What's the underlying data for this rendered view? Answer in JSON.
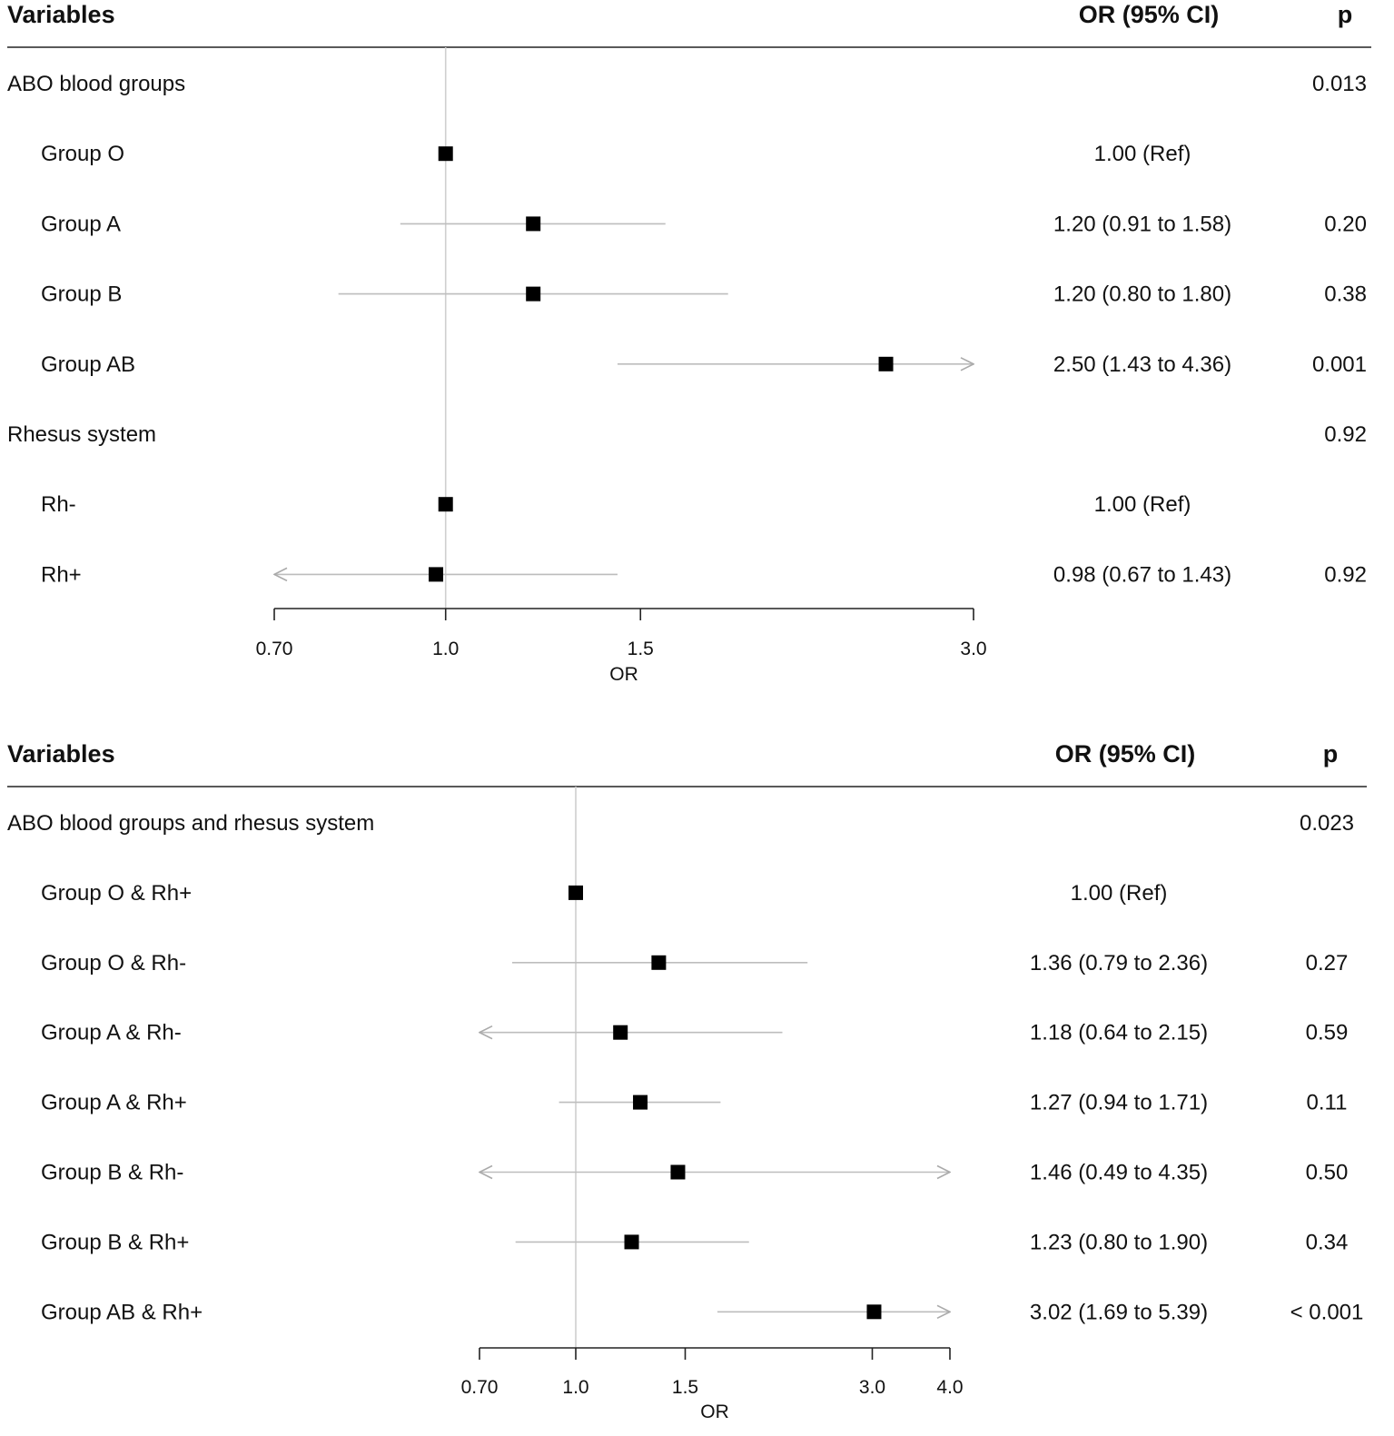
{
  "chart_data": [
    {
      "type": "forest",
      "xlabel": "OR",
      "scale": "log",
      "xlim": [
        0.7,
        3.0
      ],
      "ticks": [
        0.7,
        1.0,
        1.5,
        3.0
      ],
      "tick_labels": [
        "0.70",
        "1.0",
        "1.5",
        "3.0"
      ],
      "reference_line": 1.0,
      "headers": {
        "variables": "Variables",
        "or": "OR (95% CI)",
        "p": "p"
      },
      "rows": [
        {
          "label": "ABO blood groups",
          "kind": "group",
          "or_text": "",
          "p": "0.013"
        },
        {
          "label": "Group O",
          "kind": "item",
          "or": 1.0,
          "lo": null,
          "hi": null,
          "or_text": "1.00 (Ref)",
          "p": ""
        },
        {
          "label": "Group A",
          "kind": "item",
          "or": 1.2,
          "lo": 0.91,
          "hi": 1.58,
          "or_text": "1.20 (0.91 to 1.58)",
          "p": "0.20"
        },
        {
          "label": "Group B",
          "kind": "item",
          "or": 1.2,
          "lo": 0.8,
          "hi": 1.8,
          "or_text": "1.20 (0.80 to 1.80)",
          "p": "0.38"
        },
        {
          "label": "Group AB",
          "kind": "item",
          "or": 2.5,
          "lo": 1.43,
          "hi": 4.36,
          "or_text": "2.50 (1.43 to 4.36)",
          "p": "0.001"
        },
        {
          "label": "Rhesus system",
          "kind": "group",
          "or_text": "",
          "p": "0.92"
        },
        {
          "label": "Rh-",
          "kind": "item",
          "or": 1.0,
          "lo": null,
          "hi": null,
          "or_text": "1.00 (Ref)",
          "p": ""
        },
        {
          "label": "Rh+",
          "kind": "item",
          "or": 0.98,
          "lo": 0.67,
          "hi": 1.43,
          "or_text": "0.98 (0.67 to 1.43)",
          "p": "0.92"
        }
      ]
    },
    {
      "type": "forest",
      "xlabel": "OR",
      "scale": "log",
      "xlim": [
        0.7,
        4.0
      ],
      "ticks": [
        0.7,
        1.0,
        1.5,
        3.0,
        4.0
      ],
      "tick_labels": [
        "0.70",
        "1.0",
        "1.5",
        "3.0",
        "4.0"
      ],
      "reference_line": 1.0,
      "headers": {
        "variables": "Variables",
        "or": "OR (95% CI)",
        "p": "p"
      },
      "rows": [
        {
          "label": "ABO blood groups and rhesus system",
          "kind": "group",
          "or_text": "",
          "p": "0.023"
        },
        {
          "label": "Group O & Rh+",
          "kind": "item",
          "or": 1.0,
          "lo": null,
          "hi": null,
          "or_text": "1.00 (Ref)",
          "p": ""
        },
        {
          "label": "Group O & Rh-",
          "kind": "item",
          "or": 1.36,
          "lo": 0.79,
          "hi": 2.36,
          "or_text": "1.36 (0.79 to 2.36)",
          "p": "0.27"
        },
        {
          "label": "Group A & Rh-",
          "kind": "item",
          "or": 1.18,
          "lo": 0.64,
          "hi": 2.15,
          "or_text": "1.18 (0.64 to 2.15)",
          "p": "0.59"
        },
        {
          "label": "Group A & Rh+",
          "kind": "item",
          "or": 1.27,
          "lo": 0.94,
          "hi": 1.71,
          "or_text": "1.27 (0.94 to 1.71)",
          "p": "0.11"
        },
        {
          "label": "Group B & Rh-",
          "kind": "item",
          "or": 1.46,
          "lo": 0.49,
          "hi": 4.35,
          "or_text": "1.46 (0.49 to 4.35)",
          "p": "0.50"
        },
        {
          "label": "Group B & Rh+",
          "kind": "item",
          "or": 1.23,
          "lo": 0.8,
          "hi": 1.9,
          "or_text": "1.23 (0.80 to 1.90)",
          "p": "0.34"
        },
        {
          "label": "Group AB & Rh+",
          "kind": "item",
          "or": 3.02,
          "lo": 1.69,
          "hi": 5.39,
          "or_text": "3.02 (1.69 to 5.39)",
          "p": "< 0.001"
        }
      ]
    }
  ]
}
